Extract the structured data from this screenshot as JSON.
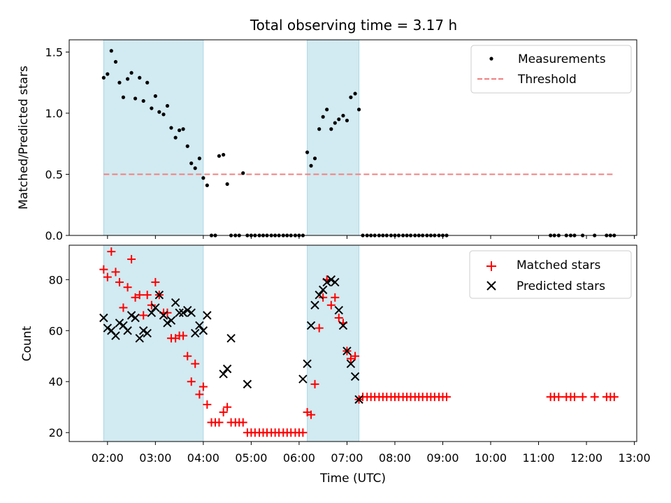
{
  "title": "Total observing time = 3.17 h",
  "chart_data": [
    {
      "type": "scatter",
      "panel": "top",
      "ylabel": "Matched/Predicted stars",
      "ylim": [
        0,
        1.6
      ],
      "yticks": [
        "0.0",
        "0.5",
        "1.0",
        "1.5"
      ],
      "xlim": [
        1.2,
        13.05
      ],
      "legend_position": "top-right",
      "legend": [
        "Measurements",
        "Threshold"
      ],
      "threshold": {
        "name": "Threshold",
        "y": 0.5,
        "x_start": 1.92,
        "x_end": 12.55,
        "color": "#f08080"
      },
      "series": [
        {
          "name": "Measurements",
          "color": "#000000",
          "x": [
            1.92,
            2.0,
            2.08,
            2.17,
            2.25,
            2.33,
            2.42,
            2.5,
            2.58,
            2.67,
            2.75,
            2.83,
            2.92,
            3.0,
            3.08,
            3.17,
            3.25,
            3.33,
            3.42,
            3.5,
            3.58,
            3.67,
            3.75,
            3.83,
            3.92,
            4.0,
            4.08,
            4.17,
            4.25,
            4.33,
            4.42,
            4.5,
            4.58,
            4.67,
            4.75,
            4.83,
            4.92,
            5.0,
            5.08,
            5.17,
            5.25,
            5.33,
            5.42,
            5.5,
            5.58,
            5.67,
            5.75,
            5.83,
            5.92,
            6.0,
            6.08,
            6.17,
            6.25,
            6.33,
            6.42,
            6.5,
            6.58,
            6.67,
            6.75,
            6.83,
            6.92,
            7.0,
            7.08,
            7.17,
            7.25,
            7.33,
            7.42,
            7.5,
            7.58,
            7.67,
            7.75,
            7.83,
            7.92,
            8.0,
            8.08,
            8.17,
            8.25,
            8.33,
            8.42,
            8.5,
            8.58,
            8.67,
            8.75,
            8.83,
            8.92,
            9.0,
            9.08,
            11.25,
            11.33,
            11.42,
            11.58,
            11.67,
            11.75,
            11.92,
            12.17,
            12.42,
            12.5,
            12.58
          ],
          "y": [
            1.29,
            1.32,
            1.51,
            1.42,
            1.25,
            1.13,
            1.28,
            1.33,
            1.12,
            1.29,
            1.1,
            1.25,
            1.04,
            1.14,
            1.01,
            0.99,
            1.06,
            0.88,
            0.8,
            0.86,
            0.87,
            0.73,
            0.59,
            0.55,
            0.63,
            0.47,
            0.41,
            0.0,
            0.0,
            0.65,
            0.66,
            0.42,
            0.0,
            0.0,
            0.0,
            0.51,
            0.0,
            0.0,
            0.0,
            0.0,
            0.0,
            0.0,
            0.0,
            0.0,
            0.0,
            0.0,
            0.0,
            0.0,
            0.0,
            0.0,
            0.0,
            0.68,
            0.57,
            0.63,
            0.87,
            0.97,
            1.03,
            0.87,
            0.92,
            0.95,
            0.98,
            0.94,
            1.13,
            1.16,
            1.03,
            0.0,
            0.0,
            0.0,
            0.0,
            0.0,
            0.0,
            0.0,
            0.0,
            0.0,
            0.0,
            0.0,
            0.0,
            0.0,
            0.0,
            0.0,
            0.0,
            0.0,
            0.0,
            0.0,
            0.0,
            0.0,
            0.0,
            0.0,
            0.0,
            0.0,
            0.0,
            0.0,
            0.0,
            0.0,
            0.0,
            0.0,
            0.0,
            0.0
          ]
        }
      ]
    },
    {
      "type": "scatter",
      "panel": "bottom",
      "ylabel": "Count",
      "xlabel": "Time (UTC)",
      "ylim": [
        16.5,
        93.5
      ],
      "yticks": [
        "20",
        "40",
        "60",
        "80"
      ],
      "xlim": [
        1.2,
        13.05
      ],
      "xticks": [
        "02:00",
        "03:00",
        "04:00",
        "05:00",
        "06:00",
        "07:00",
        "08:00",
        "09:00",
        "10:00",
        "11:00",
        "12:00",
        "13:00"
      ],
      "legend_position": "top-right",
      "legend": [
        "Matched stars",
        "Predicted stars"
      ],
      "series": [
        {
          "name": "Matched stars",
          "marker": "+",
          "color": "#ff0000",
          "x": [
            1.92,
            2.0,
            2.08,
            2.17,
            2.25,
            2.33,
            2.42,
            2.5,
            2.58,
            2.67,
            2.75,
            2.83,
            2.92,
            3.0,
            3.08,
            3.17,
            3.25,
            3.33,
            3.42,
            3.5,
            3.58,
            3.67,
            3.75,
            3.83,
            3.92,
            4.0,
            4.08,
            4.17,
            4.25,
            4.33,
            4.42,
            4.5,
            4.58,
            4.67,
            4.75,
            4.83,
            4.92,
            5.0,
            5.08,
            5.17,
            5.25,
            5.33,
            5.42,
            5.5,
            5.58,
            5.67,
            5.75,
            5.83,
            5.92,
            6.0,
            6.08,
            6.17,
            6.25,
            6.33,
            6.42,
            6.5,
            6.58,
            6.67,
            6.75,
            6.83,
            6.92,
            7.0,
            7.08,
            7.17,
            7.25,
            7.33,
            7.42,
            7.5,
            7.58,
            7.67,
            7.75,
            7.83,
            7.92,
            8.0,
            8.08,
            8.17,
            8.25,
            8.33,
            8.42,
            8.5,
            8.58,
            8.67,
            8.75,
            8.83,
            8.92,
            9.0,
            9.08,
            11.25,
            11.33,
            11.42,
            11.58,
            11.67,
            11.75,
            11.92,
            12.17,
            12.42,
            12.5,
            12.58
          ],
          "y": [
            84,
            81,
            91,
            83,
            79,
            69,
            77,
            88,
            73,
            74,
            66,
            74,
            70,
            79,
            74,
            67,
            67,
            57,
            57,
            58,
            58,
            50,
            40,
            47,
            35,
            38,
            31,
            24,
            24,
            24,
            28,
            30,
            24,
            24,
            24,
            24,
            20,
            20,
            20,
            20,
            20,
            20,
            20,
            20,
            20,
            20,
            20,
            20,
            20,
            20,
            20,
            28,
            27,
            39,
            61,
            73,
            80,
            70,
            73,
            65,
            63,
            52,
            49,
            50,
            33,
            34,
            34,
            34,
            34,
            34,
            34,
            34,
            34,
            34,
            34,
            34,
            34,
            34,
            34,
            34,
            34,
            34,
            34,
            34,
            34,
            34,
            34,
            34,
            34,
            34,
            34,
            34,
            34,
            34,
            34,
            34,
            34,
            34
          ]
        },
        {
          "name": "Predicted stars",
          "marker": "x",
          "color": "#000000",
          "x": [
            1.92,
            2.0,
            2.08,
            2.17,
            2.25,
            2.33,
            2.42,
            2.5,
            2.58,
            2.67,
            2.75,
            2.83,
            2.92,
            3.0,
            3.08,
            3.17,
            3.25,
            3.33,
            3.42,
            3.5,
            3.58,
            3.67,
            3.75,
            3.83,
            3.92,
            4.0,
            4.08,
            4.42,
            4.5,
            4.58,
            4.92,
            6.08,
            6.17,
            6.25,
            6.33,
            6.42,
            6.5,
            6.58,
            6.67,
            6.75,
            6.83,
            6.92,
            7.0,
            7.08,
            7.17,
            7.25
          ],
          "y": [
            65,
            61,
            60,
            58,
            63,
            62,
            60,
            66,
            65,
            57,
            60,
            59,
            67,
            69,
            74,
            66,
            63,
            64,
            71,
            67,
            67,
            68,
            67,
            59,
            62,
            60,
            66,
            43,
            45,
            57,
            39,
            41,
            47,
            62,
            70,
            74,
            76,
            79,
            80,
            79,
            68,
            62,
            52,
            47,
            42,
            33
          ]
        }
      ]
    }
  ],
  "shaded_intervals": [
    [
      1.92,
      4.0
    ],
    [
      6.17,
      7.25
    ]
  ],
  "shade_color": "#add8e6"
}
